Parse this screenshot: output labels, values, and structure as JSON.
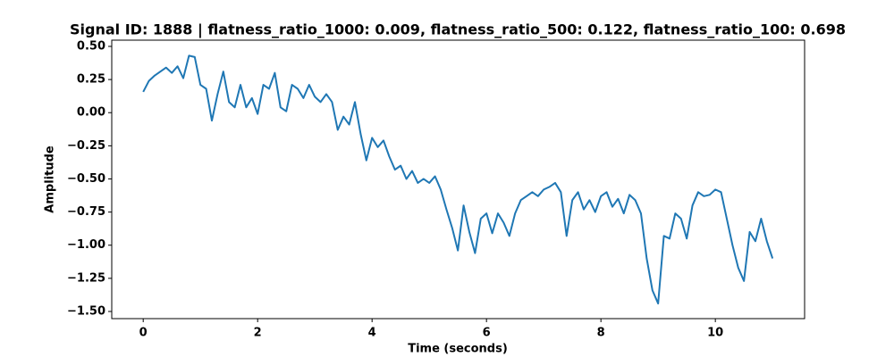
{
  "chart_data": {
    "type": "line",
    "title": "Signal ID: 1888 | flatness_ratio_1000: 0.009, flatness_ratio_500: 0.122, flatness_ratio_100: 0.698",
    "x_label": "Time (seconds)",
    "y_label": "Amplitude",
    "x": [
      0,
      0.1,
      0.2,
      0.3,
      0.4,
      0.5,
      0.6,
      0.7,
      0.8,
      0.9,
      1.0,
      1.1,
      1.2,
      1.3,
      1.4,
      1.5,
      1.6,
      1.7,
      1.8,
      1.9,
      2.0,
      2.1,
      2.2,
      2.3,
      2.4,
      2.5,
      2.6,
      2.7,
      2.8,
      2.9,
      3.0,
      3.1,
      3.2,
      3.3,
      3.4,
      3.5,
      3.6,
      3.7,
      3.8,
      3.9,
      4.0,
      4.1,
      4.2,
      4.3,
      4.4,
      4.5,
      4.6,
      4.7,
      4.8,
      4.9,
      5.0,
      5.1,
      5.2,
      5.3,
      5.4,
      5.5,
      5.6,
      5.7,
      5.8,
      5.9,
      6.0,
      6.1,
      6.2,
      6.3,
      6.4,
      6.5,
      6.6,
      6.7,
      6.8,
      6.9,
      7.0,
      7.1,
      7.2,
      7.3,
      7.4,
      7.5,
      7.6,
      7.7,
      7.8,
      7.9,
      8.0,
      8.1,
      8.2,
      8.3,
      8.4,
      8.5,
      8.6,
      8.7,
      8.8,
      8.9,
      9.0,
      9.1,
      9.2,
      9.3,
      9.4,
      9.5,
      9.6,
      9.7,
      9.8,
      9.9,
      10.0,
      10.1,
      10.2,
      10.3,
      10.4,
      10.5,
      10.6,
      10.7,
      10.8,
      10.9,
      11.0
    ],
    "series": [
      {
        "color": "#1f77b4",
        "values": [
          0.157,
          0.24,
          0.28,
          0.31,
          0.34,
          0.3,
          0.35,
          0.26,
          0.43,
          0.42,
          0.21,
          0.18,
          -0.06,
          0.14,
          0.31,
          0.08,
          0.04,
          0.21,
          0.04,
          0.11,
          -0.01,
          0.21,
          0.18,
          0.3,
          0.04,
          0.01,
          0.21,
          0.18,
          0.11,
          0.21,
          0.12,
          0.08,
          0.14,
          0.08,
          -0.13,
          -0.03,
          -0.09,
          0.08,
          -0.16,
          -0.36,
          -0.19,
          -0.26,
          -0.21,
          -0.33,
          -0.43,
          -0.4,
          -0.5,
          -0.44,
          -0.53,
          -0.5,
          -0.53,
          -0.48,
          -0.58,
          -0.73,
          -0.87,
          -1.04,
          -0.7,
          -0.9,
          -1.06,
          -0.8,
          -0.76,
          -0.91,
          -0.76,
          -0.83,
          -0.93,
          -0.76,
          -0.66,
          -0.63,
          -0.6,
          -0.63,
          -0.58,
          -0.56,
          -0.53,
          -0.6,
          -0.93,
          -0.66,
          -0.6,
          -0.73,
          -0.66,
          -0.75,
          -0.63,
          -0.6,
          -0.71,
          -0.65,
          -0.76,
          -0.62,
          -0.66,
          -0.76,
          -1.1,
          -1.34,
          -1.44,
          -0.93,
          -0.95,
          -0.76,
          -0.8,
          -0.95,
          -0.7,
          -0.6,
          -0.63,
          -0.62,
          -0.58,
          -0.6,
          -0.8,
          -1.0,
          -1.17,
          -1.27,
          -0.9,
          -0.97,
          -0.8,
          -0.97,
          -1.1
        ]
      }
    ],
    "xlim": [
      -0.55,
      11.56
    ],
    "ylim": [
      -1.554,
      0.547
    ],
    "xticks": [
      0,
      2,
      4,
      6,
      8,
      10
    ],
    "yticks": [
      {
        "value": 0.5,
        "label": "0.50"
      },
      {
        "value": 0.25,
        "label": "0.25"
      },
      {
        "value": 0,
        "label": "0.00"
      },
      {
        "value": -0.25,
        "label": "−0.25"
      },
      {
        "value": -0.5,
        "label": "−0.50"
      },
      {
        "value": -0.75,
        "label": "−0.75"
      },
      {
        "value": -1,
        "label": "−1.00"
      },
      {
        "value": -1.25,
        "label": "−1.25"
      },
      {
        "value": -1.5,
        "label": "−1.50"
      }
    ],
    "grid": false
  }
}
